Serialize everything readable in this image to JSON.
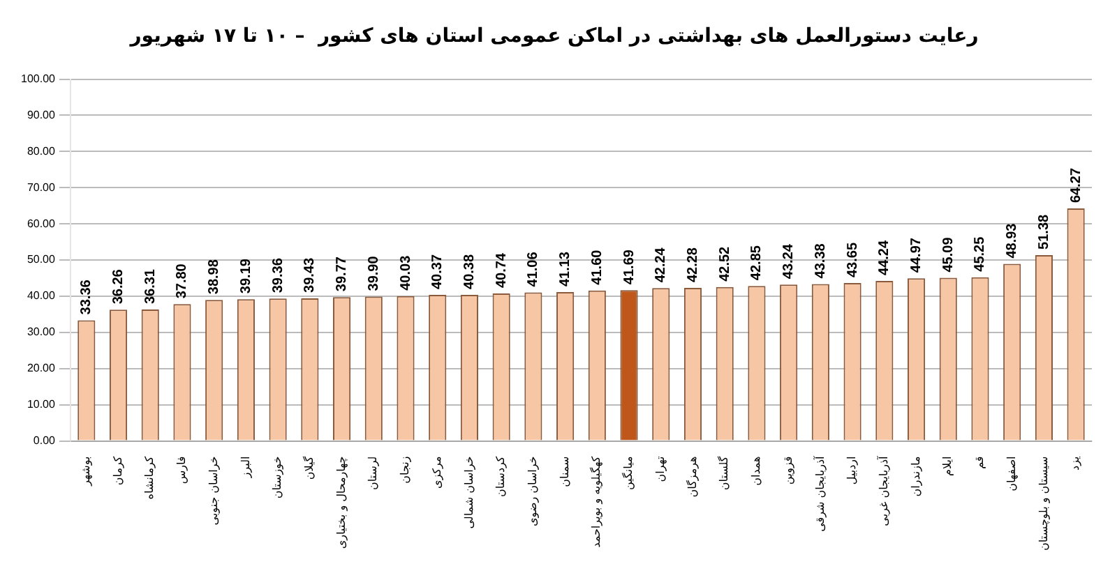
{
  "chart_data": {
    "type": "bar",
    "title": "رعایت دستورالعمل های بهداشتی در اماکن عمومی استان های کشور  – ۱۰ تا ۱۷ شهریور",
    "categories": [
      "بوشهر",
      "کرمان",
      "کرمانشاه",
      "فارس",
      "خراسان جنوبی",
      "البرز",
      "خوزستان",
      "گیلان",
      "چهارمحال و بختیاری",
      "لرستان",
      "زنجان",
      "مرکزی",
      "خراسان شمالی",
      "کردستان",
      "خراسان رضوی",
      "سمنان",
      "کهگیلویه و بویراحمد",
      "میانگین",
      "تهران",
      "هرمزگان",
      "گلستان",
      "همدان",
      "قزوین",
      "آذربایجان شرقی",
      "اردبیل",
      "آذربایجان غربی",
      "مازندران",
      "ایلام",
      "قم",
      "اصفهان",
      "سیستان و بلوچستان",
      "یزد"
    ],
    "values": [
      33.36,
      36.26,
      36.31,
      37.8,
      38.98,
      39.19,
      39.36,
      39.43,
      39.77,
      39.9,
      40.03,
      40.37,
      40.38,
      40.74,
      41.06,
      41.13,
      41.6,
      41.69,
      42.24,
      42.28,
      42.52,
      42.85,
      43.24,
      43.38,
      43.65,
      44.24,
      44.97,
      45.09,
      45.25,
      48.93,
      51.38,
      64.27
    ],
    "value_labels": [
      "33.36",
      "36.26",
      "36.31",
      "37.80",
      "38.98",
      "39.19",
      "39.36",
      "39.43",
      "39.77",
      "39.90",
      "40.03",
      "40.37",
      "40.38",
      "40.74",
      "41.06",
      "41.13",
      "41.60",
      "41.69",
      "42.24",
      "42.28",
      "42.52",
      "42.85",
      "43.24",
      "43.38",
      "43.65",
      "44.24",
      "44.97",
      "45.09",
      "45.25",
      "48.93",
      "51.38",
      "64.27"
    ],
    "colors": [
      "#f7c6a5",
      "#f7c6a5",
      "#f7c6a5",
      "#f7c6a5",
      "#f7c6a5",
      "#f7c6a5",
      "#f7c6a5",
      "#f7c6a5",
      "#f7c6a5",
      "#f7c6a5",
      "#f7c6a5",
      "#f7c6a5",
      "#f7c6a5",
      "#f7c6a5",
      "#f7c6a5",
      "#f7c6a5",
      "#f7c6a5",
      "#c0571a",
      "#f7c6a5",
      "#f7c6a5",
      "#f7c6a5",
      "#f7c6a5",
      "#f7c6a5",
      "#f7c6a5",
      "#f7c6a5",
      "#f7c6a5",
      "#f7c6a5",
      "#f7c6a5",
      "#f7c6a5",
      "#f7c6a5",
      "#f7c6a5",
      "#f7c6a5"
    ],
    "ylim": [
      0,
      100
    ],
    "yticks": [
      {
        "value": 0,
        "label": "0.00"
      },
      {
        "value": 10,
        "label": "10.00"
      },
      {
        "value": 20,
        "label": "20.00"
      },
      {
        "value": 30,
        "label": "30.00"
      },
      {
        "value": 40,
        "label": "40.00"
      },
      {
        "value": 50,
        "label": "50.00"
      },
      {
        "value": 60,
        "label": "60.00"
      },
      {
        "value": 70,
        "label": "70.00"
      },
      {
        "value": 80,
        "label": "80.00"
      },
      {
        "value": 90,
        "label": "90.00"
      },
      {
        "value": 100,
        "label": "100.00"
      }
    ],
    "grid": "y",
    "legend": false
  }
}
